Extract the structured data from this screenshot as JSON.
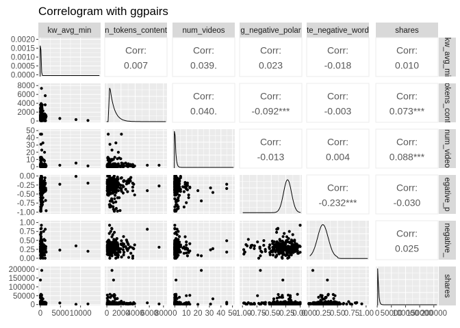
{
  "chart_data": {
    "type": "scatter-matrix",
    "title": "Correlogram with ggpairs",
    "variables": [
      "kw_avg_min",
      "n_tokens_content",
      "num_videos",
      "avg_negative_polarity",
      "rate_negative_words",
      "shares"
    ],
    "column_strip_labels": [
      "kw_avg_min",
      "n_tokens_content",
      "num_videos",
      "g_negative_polar",
      "te_negative_word",
      "shares"
    ],
    "row_strip_labels": [
      "kw_avg_mi",
      "okens_cont",
      "num_video",
      "egative_p",
      "negative_",
      "shares"
    ],
    "y_ticks": [
      [
        "0.0000",
        "0.0005",
        "0.0010",
        "0.0015",
        "0.0020"
      ],
      [
        "0",
        "2000",
        "4000",
        "6000",
        "8000"
      ],
      [
        "0",
        "10",
        "20",
        "30",
        "40",
        "50"
      ],
      [
        "-1.00",
        "-0.75",
        "-0.50",
        "-0.25",
        "0.00"
      ],
      [
        "0.00",
        "0.25",
        "0.50",
        "0.75",
        "1.00"
      ],
      [
        "0",
        "50000",
        "100000",
        "150000",
        "200000"
      ]
    ],
    "x_ticks": [
      [
        "0",
        "5000",
        "10000"
      ],
      [
        "0",
        "2000",
        "4000",
        "6000",
        "8000"
      ],
      [
        "0",
        "10",
        "20",
        "30",
        "40",
        "50"
      ],
      [
        "-1.00",
        "-0.75",
        "-0.50",
        "-0.25",
        "0.00"
      ],
      [
        "0.00",
        "0.25",
        "0.50",
        "0.75",
        "1.00"
      ],
      [
        "0",
        "50000",
        "100000",
        "150000",
        "200000"
      ]
    ],
    "corr_label": "Corr:",
    "correlations": [
      {
        "row": 0,
        "col": 1,
        "value": "0.007"
      },
      {
        "row": 0,
        "col": 2,
        "value": "0.039."
      },
      {
        "row": 0,
        "col": 3,
        "value": "0.023"
      },
      {
        "row": 0,
        "col": 4,
        "value": "-0.018"
      },
      {
        "row": 0,
        "col": 5,
        "value": "0.010"
      },
      {
        "row": 1,
        "col": 2,
        "value": "0.040."
      },
      {
        "row": 1,
        "col": 3,
        "value": "-0.092***"
      },
      {
        "row": 1,
        "col": 4,
        "value": "-0.003"
      },
      {
        "row": 1,
        "col": 5,
        "value": "0.073***"
      },
      {
        "row": 2,
        "col": 3,
        "value": "-0.013"
      },
      {
        "row": 2,
        "col": 4,
        "value": "0.004"
      },
      {
        "row": 2,
        "col": 5,
        "value": "0.088***"
      },
      {
        "row": 3,
        "col": 4,
        "value": "-0.232***"
      },
      {
        "row": 3,
        "col": 5,
        "value": "-0.030"
      },
      {
        "row": 4,
        "col": 5,
        "value": "0.025"
      }
    ],
    "lower_panels": "scatter",
    "diagonal_panels": "density",
    "upper_panels": "correlation",
    "grid": true,
    "colors": {
      "panel_background": "#ebebeb",
      "grid": "#ffffff",
      "strip": "#d9d9d9",
      "points": "#000000",
      "corr_text": "#595959"
    }
  }
}
